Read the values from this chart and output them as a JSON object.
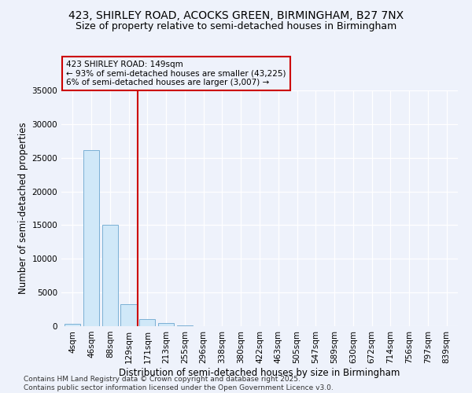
{
  "title_line1": "423, SHIRLEY ROAD, ACOCKS GREEN, BIRMINGHAM, B27 7NX",
  "title_line2": "Size of property relative to semi-detached houses in Birmingham",
  "xlabel": "Distribution of semi-detached houses by size in Birmingham",
  "ylabel": "Number of semi-detached properties",
  "categories": [
    "4sqm",
    "46sqm",
    "88sqm",
    "129sqm",
    "171sqm",
    "213sqm",
    "255sqm",
    "296sqm",
    "338sqm",
    "380sqm",
    "422sqm",
    "463sqm",
    "505sqm",
    "547sqm",
    "589sqm",
    "630sqm",
    "672sqm",
    "714sqm",
    "756sqm",
    "797sqm",
    "839sqm"
  ],
  "values": [
    350,
    26100,
    15100,
    3300,
    1050,
    450,
    150,
    50,
    10,
    5,
    2,
    1,
    0,
    0,
    0,
    0,
    0,
    0,
    0,
    0,
    0
  ],
  "bar_color": "#d0e8f8",
  "bar_edgecolor": "#7ab0d4",
  "vline_color": "#cc0000",
  "vline_xindex": 3.5,
  "annotation_text": "423 SHIRLEY ROAD: 149sqm\n← 93% of semi-detached houses are smaller (43,225)\n6% of semi-detached houses are larger (3,007) →",
  "annotation_box_edgecolor": "#cc0000",
  "ylim": [
    0,
    35000
  ],
  "yticks": [
    0,
    5000,
    10000,
    15000,
    20000,
    25000,
    30000,
    35000
  ],
  "bg_color": "#eef2fb",
  "grid_color": "#ffffff",
  "footer": "Contains HM Land Registry data © Crown copyright and database right 2025.\nContains public sector information licensed under the Open Government Licence v3.0.",
  "title_fontsize": 10,
  "subtitle_fontsize": 9,
  "axis_label_fontsize": 8.5,
  "tick_fontsize": 7.5,
  "annotation_fontsize": 7.5,
  "footer_fontsize": 6.5
}
